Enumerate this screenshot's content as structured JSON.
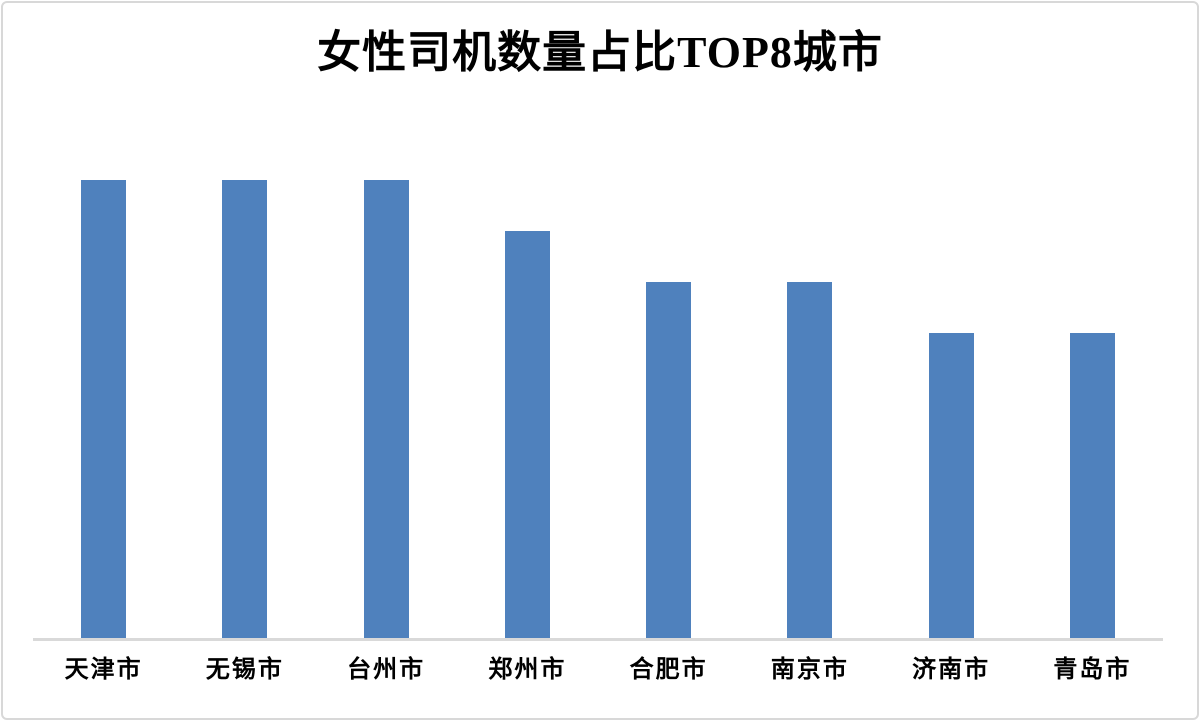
{
  "page": {
    "background": "#ffffff",
    "border_color": "#d8d8d8"
  },
  "chart": {
    "bar_color": "#4f81bd",
    "axis_line_color": "#d9d9d9",
    "text_color": "#000000"
  },
  "chart_data": {
    "type": "bar",
    "title": "女性司机数量占比TOP8城市",
    "categories": [
      "天津市",
      "无锡市",
      "台州市",
      "郑州市",
      "合肥市",
      "南京市",
      "济南市",
      "青岛市"
    ],
    "values": [
      9,
      9,
      9,
      8,
      7,
      7,
      6,
      6
    ],
    "xlabel": "",
    "ylabel": "",
    "ylim": [
      0,
      10
    ],
    "grid": false,
    "legend": false,
    "y_axis_visible": false,
    "data_labels_visible": false,
    "bar_color": "#4f81bd"
  }
}
